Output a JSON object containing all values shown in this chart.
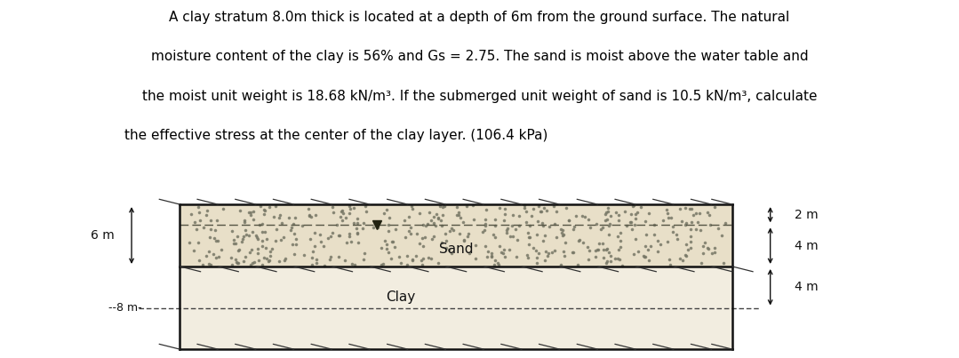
{
  "title_line1": "A clay stratum 8.0m thick is located at a depth of 6m from the ground surface. The natural",
  "title_line2": "moisture content of the clay is 56% and Gs = 2.75. The sand is moist above the water table and",
  "title_line3": "the moist unit weight is 18.68 kN/m³. If the submerged unit weight of sand is 10.5 kN/m³, calculate",
  "title_line4": "the effective stress at the center of the clay layer. (106.4 kPa)",
  "label_sand": "Sand",
  "label_clay": "Clay",
  "label_2m": "2 m",
  "label_4m_top": "4 m",
  "label_4m_bot": "4 m",
  "label_6m": "6 m",
  "label_8m": "--8 m-",
  "bg_color": "#ffffff",
  "sand_color": "#e8dfc8",
  "clay_color": "#f2ede0",
  "text_color": "#000000",
  "hatch_color": "#333333",
  "fontsize_title": 11,
  "fontsize_labels": 11,
  "fontsize_dim": 10
}
